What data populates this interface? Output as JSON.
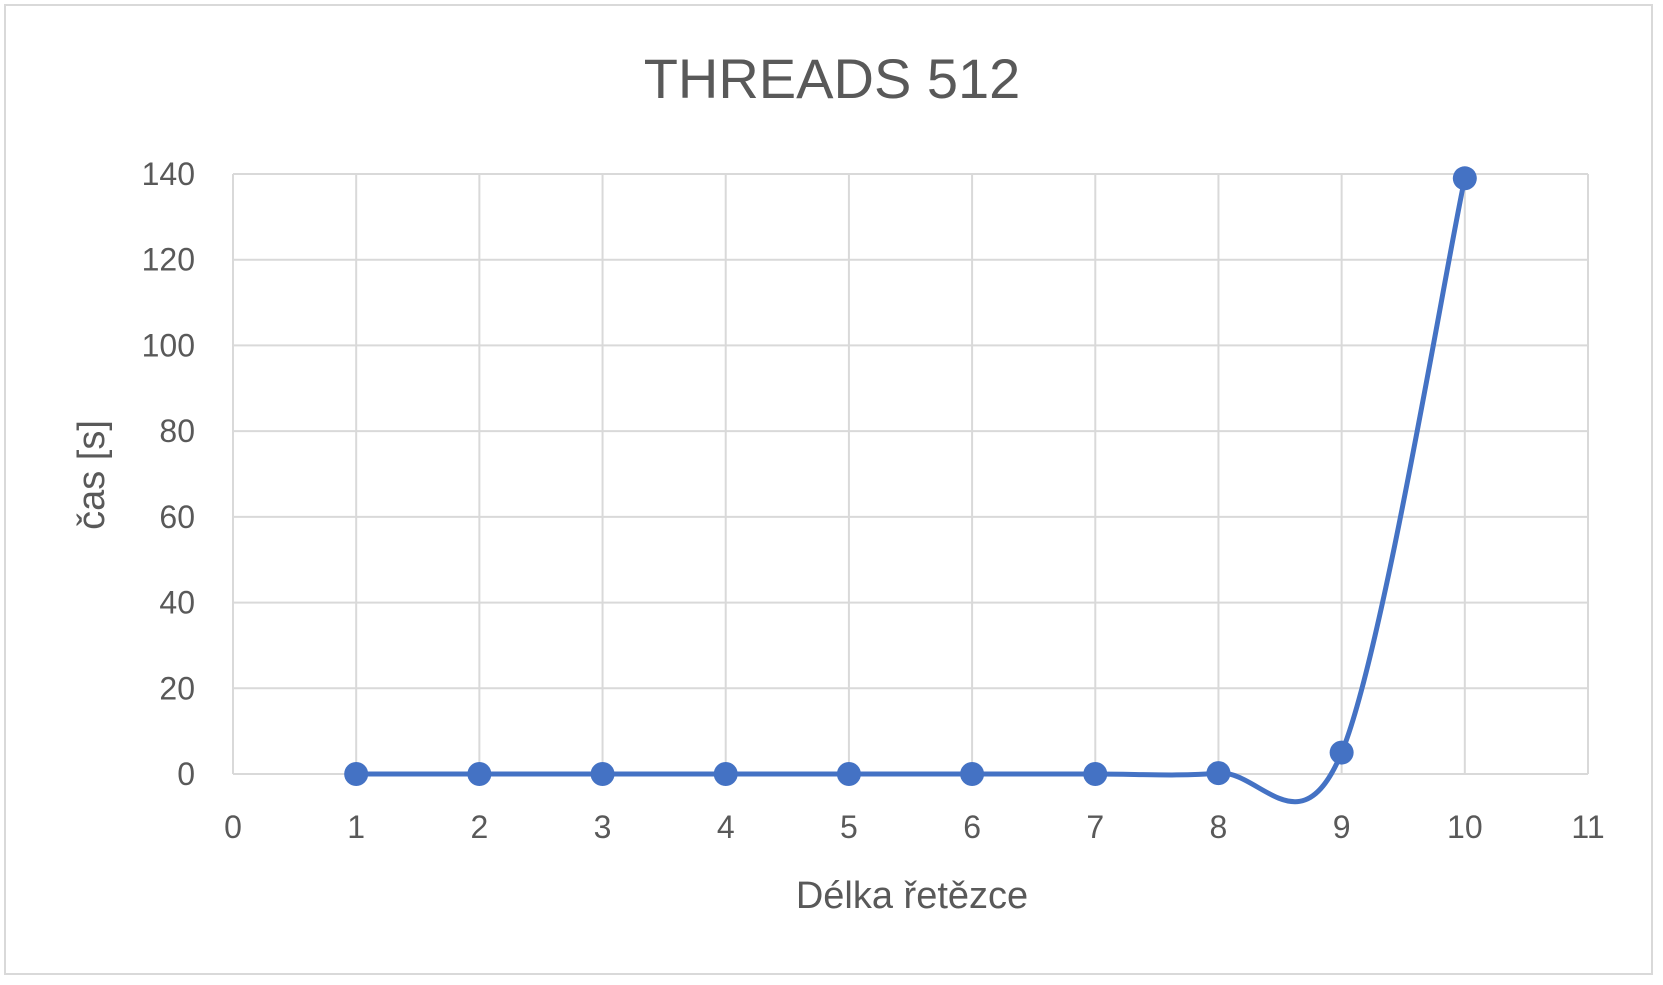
{
  "chart_data": {
    "type": "line",
    "title": "THREADS 512",
    "xlabel": "Délka řetězce",
    "ylabel": "čas [s]",
    "xlim": [
      0,
      11
    ],
    "ylim": [
      0,
      140
    ],
    "x_ticks": [
      "0",
      "1",
      "2",
      "3",
      "4",
      "5",
      "6",
      "7",
      "8",
      "9",
      "10",
      "11"
    ],
    "y_ticks": [
      "0",
      "20",
      "40",
      "60",
      "80",
      "100",
      "120",
      "140"
    ],
    "grid": true,
    "legend": "none",
    "smoothed": true,
    "series": [
      {
        "color": "#4472c4",
        "x": [
          1,
          2,
          3,
          4,
          5,
          6,
          7,
          8,
          9,
          10
        ],
        "y": [
          0,
          0,
          0,
          0,
          0,
          0,
          0,
          0.2,
          5,
          139
        ]
      }
    ]
  }
}
